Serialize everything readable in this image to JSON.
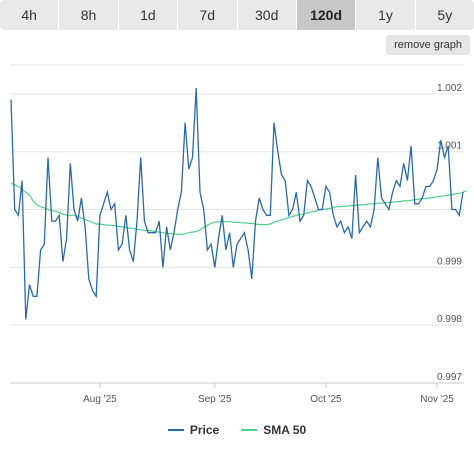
{
  "tabs": [
    {
      "label": "4h",
      "active": false
    },
    {
      "label": "8h",
      "active": false
    },
    {
      "label": "1d",
      "active": false
    },
    {
      "label": "7d",
      "active": false
    },
    {
      "label": "30d",
      "active": false
    },
    {
      "label": "120d",
      "active": true
    },
    {
      "label": "1y",
      "active": false
    },
    {
      "label": "5y",
      "active": false
    }
  ],
  "remove_graph_label": "remove graph",
  "colors": {
    "price": "#2b6aa6",
    "sma": "#4fcf8f",
    "grid": "#e3e3e3"
  },
  "chart_data": {
    "type": "line",
    "title": "",
    "xlabel": "",
    "ylabel": "",
    "ylim": [
      0.997,
      1.0025
    ],
    "y_ticks": [
      {
        "value": 0.997,
        "label": "0.997"
      },
      {
        "value": 0.998,
        "label": "0.998"
      },
      {
        "value": 0.999,
        "label": "0.999"
      },
      {
        "value": 1.0,
        "label": ""
      },
      {
        "value": 1.001,
        "label": "1.001"
      },
      {
        "value": 1.002,
        "label": "1.002"
      }
    ],
    "x_ticks": [
      "Aug '25",
      "Sep '25",
      "Oct '25",
      "Nov '25"
    ],
    "x_tick_index": [
      24,
      55,
      85,
      115
    ],
    "grid": true,
    "legend_position": "bottom",
    "series": [
      {
        "name": "Price",
        "values": [
          1.0019,
          1.0,
          0.9999,
          1.0005,
          0.9981,
          0.9987,
          0.9985,
          0.9985,
          0.9993,
          0.9994,
          1.0009,
          0.9998,
          0.9998,
          0.9999,
          0.9991,
          0.9995,
          1.0008,
          1.0,
          0.9998,
          1.0002,
          0.9997,
          0.9988,
          0.9986,
          0.9985,
          0.9999,
          1.0001,
          1.0003,
          1.0,
          1.0001,
          0.9993,
          0.9994,
          0.9999,
          0.9993,
          0.9991,
          0.9998,
          1.0009,
          0.9998,
          0.9996,
          0.9996,
          0.9996,
          0.9998,
          0.999,
          0.9997,
          0.9993,
          0.9996,
          1.0,
          1.0003,
          1.0015,
          1.0007,
          1.0009,
          1.0021,
          1.0003,
          1.0,
          0.9993,
          0.9994,
          0.999,
          0.9995,
          0.9999,
          0.9993,
          0.9996,
          0.999,
          0.9994,
          0.9995,
          0.9996,
          0.9993,
          0.9988,
          0.9998,
          1.0002,
          1.0,
          0.9999,
          0.9999,
          1.0015,
          1.001,
          1.0006,
          1.0005,
          0.9999,
          1.0,
          1.0003,
          0.9998,
          0.9999,
          1.0005,
          1.0004,
          1.0002,
          1.0,
          1.0,
          1.0004,
          1.0003,
          0.9999,
          0.9997,
          0.9998,
          0.9996,
          0.9997,
          0.9995,
          1.0006,
          0.9996,
          0.9997,
          0.9998,
          0.9997,
          1.0,
          1.0009,
          1.0002,
          1.0001,
          1.0,
          1.0003,
          1.0005,
          1.0004,
          1.0008,
          1.0005,
          1.0011,
          1.0001,
          1.0001,
          1.0002,
          1.0004,
          1.0004,
          1.0005,
          1.0007,
          1.0012,
          1.0009,
          1.0011,
          1.0,
          1.0,
          0.9999,
          1.0003
        ]
      },
      {
        "name": "SMA 50",
        "values": [
          1.00045,
          1.00043,
          1.0004,
          1.00035,
          1.0003,
          1.00025,
          1.00015,
          1.00008,
          1.00005,
          1.00003,
          1.0,
          0.99998,
          0.99997,
          0.99995,
          0.99992,
          0.9999,
          0.9999,
          0.9999,
          0.99988,
          0.99985,
          0.99983,
          0.9998,
          0.99978,
          0.99975,
          0.99975,
          0.99974,
          0.99973,
          0.99973,
          0.99972,
          0.99971,
          0.9997,
          0.99969,
          0.99968,
          0.99967,
          0.99966,
          0.99965,
          0.99964,
          0.99964,
          0.99963,
          0.99962,
          0.99961,
          0.9996,
          0.99959,
          0.99958,
          0.99958,
          0.99957,
          0.99957,
          0.99958,
          0.9996,
          0.99961,
          0.99962,
          0.99965,
          0.99969,
          0.99973,
          0.99976,
          0.99978,
          0.99979,
          0.99979,
          0.99979,
          0.99979,
          0.99978,
          0.99978,
          0.99977,
          0.99977,
          0.99976,
          0.99976,
          0.99975,
          0.99974,
          0.99974,
          0.99974,
          0.99975,
          0.99978,
          0.9998,
          0.99982,
          0.99984,
          0.99986,
          0.99988,
          0.9999,
          0.99991,
          0.99992,
          0.99994,
          0.99996,
          0.99997,
          0.99999,
          1.0,
          1.00001,
          1.00002,
          1.00004,
          1.00005,
          1.00005,
          1.00006,
          1.00006,
          1.00007,
          1.00007,
          1.00008,
          1.00008,
          1.00009,
          1.0001,
          1.0001,
          1.00011,
          1.00011,
          1.00012,
          1.00012,
          1.00013,
          1.00013,
          1.00014,
          1.00015,
          1.00015,
          1.00016,
          1.00017,
          1.00018,
          1.00019,
          1.00019,
          1.0002,
          1.00021,
          1.00022,
          1.00023,
          1.00024,
          1.00025,
          1.00026,
          1.00027,
          1.00028,
          1.0003,
          1.00033
        ]
      }
    ]
  }
}
